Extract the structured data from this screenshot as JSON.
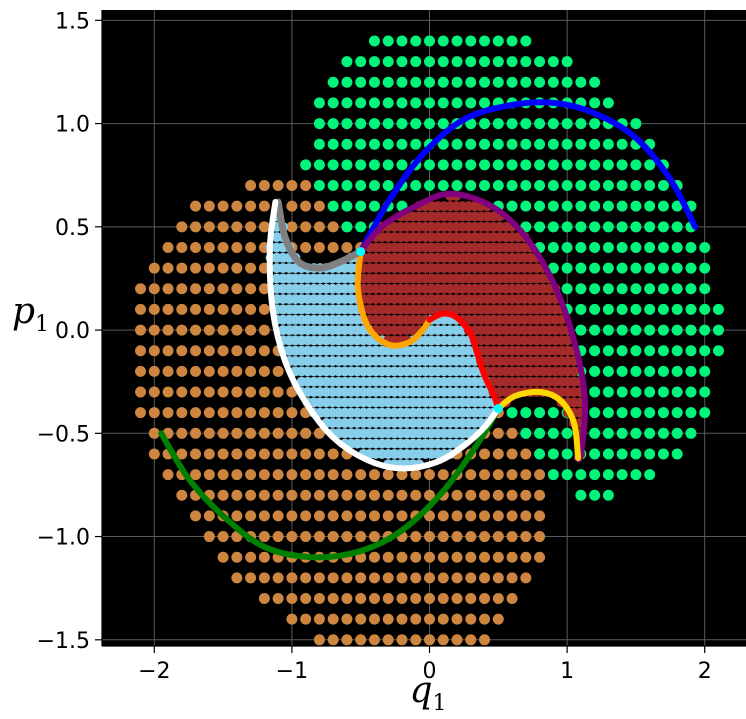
{
  "chart_data": {
    "type": "scatter",
    "title": "",
    "xlabel": "q",
    "xlabel_sub": "1",
    "ylabel": "p",
    "ylabel_sub": "1",
    "xlim": [
      -2.38,
      2.3
    ],
    "ylim": [
      -1.53,
      1.55
    ],
    "grid": true,
    "background": "#000000",
    "x_ticks": [
      -2,
      -1,
      0,
      1,
      2
    ],
    "x_tick_labels": [
      "−2",
      "−1",
      "0",
      "1",
      "2"
    ],
    "y_ticks": [
      -1.5,
      -1.0,
      -0.5,
      0.0,
      0.5,
      1.0,
      1.5
    ],
    "y_tick_labels": [
      "−1.5",
      "−1.0",
      "−0.5",
      "0.0",
      "0.5",
      "1.0",
      "1.5"
    ],
    "point_grid_step": {
      "x": 0.1,
      "y": 0.1
    },
    "regions": [
      {
        "name": "green-region",
        "color": "#00f57a",
        "radius": 5.5,
        "shape": "ellipse",
        "center": [
          0.6,
          0.35
        ],
        "radii": [
          1.6,
          1.05
        ],
        "tilt_deg": -25,
        "mask": "upper-right-of-boundary"
      },
      {
        "name": "orange-region",
        "color": "#cd853f",
        "radius": 5.5,
        "shape": "ellipse",
        "center": [
          -0.65,
          -0.45
        ],
        "radii": [
          1.6,
          1.05
        ],
        "tilt_deg": -25,
        "mask": "lower-left-of-boundary"
      },
      {
        "name": "lightblue-region",
        "color": "#87ceeb",
        "radius": 5,
        "shape": "polygon",
        "boundary": "white-lobe"
      },
      {
        "name": "brown-region",
        "color": "#a52a2a",
        "radius": 5,
        "shape": "polygon",
        "boundary": "red-lobe"
      }
    ],
    "curves": [
      {
        "name": "blue-curve",
        "color": "#0000ff",
        "width": 6,
        "points": [
          [
            -0.5,
            0.38
          ],
          [
            -0.3,
            0.62
          ],
          [
            -0.05,
            0.85
          ],
          [
            0.25,
            1.02
          ],
          [
            0.6,
            1.09
          ],
          [
            0.9,
            1.1
          ],
          [
            1.2,
            1.05
          ],
          [
            1.5,
            0.93
          ],
          [
            1.75,
            0.73
          ],
          [
            1.93,
            0.5
          ]
        ]
      },
      {
        "name": "green-curve",
        "color": "#008000",
        "width": 6,
        "points": [
          [
            0.5,
            -0.38
          ],
          [
            0.35,
            -0.55
          ],
          [
            0.1,
            -0.78
          ],
          [
            -0.2,
            -0.97
          ],
          [
            -0.5,
            -1.07
          ],
          [
            -0.85,
            -1.1
          ],
          [
            -1.2,
            -1.05
          ],
          [
            -1.5,
            -0.9
          ],
          [
            -1.75,
            -0.72
          ],
          [
            -1.95,
            -0.5
          ]
        ]
      },
      {
        "name": "purple-curve",
        "color": "#800080",
        "width": 6,
        "points": [
          [
            -0.5,
            0.38
          ],
          [
            -0.35,
            0.5
          ],
          [
            -0.1,
            0.6
          ],
          [
            0.15,
            0.66
          ],
          [
            0.45,
            0.6
          ],
          [
            0.7,
            0.45
          ],
          [
            0.92,
            0.2
          ],
          [
            1.07,
            -0.1
          ],
          [
            1.13,
            -0.35
          ],
          [
            1.1,
            -0.6
          ],
          [
            1.07,
            -0.62
          ]
        ]
      },
      {
        "name": "orange-curve",
        "color": "#ffa500",
        "width": 6,
        "points": [
          [
            -0.5,
            0.38
          ],
          [
            -0.52,
            0.2
          ],
          [
            -0.45,
            0.02
          ],
          [
            -0.3,
            -0.07
          ],
          [
            -0.15,
            -0.06
          ],
          [
            -0.05,
            0.0
          ],
          [
            0.0,
            0.05
          ]
        ]
      },
      {
        "name": "red-curve",
        "color": "#ff0000",
        "width": 6,
        "points": [
          [
            0.0,
            0.05
          ],
          [
            0.1,
            0.08
          ],
          [
            0.2,
            0.06
          ],
          [
            0.3,
            -0.02
          ],
          [
            0.35,
            -0.12
          ],
          [
            0.4,
            -0.22
          ],
          [
            0.47,
            -0.32
          ],
          [
            0.5,
            -0.38
          ]
        ]
      },
      {
        "name": "yellow-curve",
        "color": "#ffd700",
        "width": 6,
        "points": [
          [
            0.5,
            -0.38
          ],
          [
            0.62,
            -0.32
          ],
          [
            0.8,
            -0.3
          ],
          [
            0.95,
            -0.34
          ],
          [
            1.05,
            -0.45
          ],
          [
            1.08,
            -0.62
          ]
        ]
      },
      {
        "name": "gray-curve",
        "color": "#808080",
        "width": 7,
        "points": [
          [
            -1.1,
            0.62
          ],
          [
            -1.05,
            0.45
          ],
          [
            -0.95,
            0.33
          ],
          [
            -0.8,
            0.3
          ],
          [
            -0.65,
            0.33
          ],
          [
            -0.5,
            0.38
          ]
        ]
      },
      {
        "name": "white-curve",
        "color": "#ffffff",
        "width": 6,
        "points": [
          [
            -1.12,
            0.62
          ],
          [
            -1.16,
            0.4
          ],
          [
            -1.14,
            0.1
          ],
          [
            -1.05,
            -0.15
          ],
          [
            -0.9,
            -0.35
          ],
          [
            -0.7,
            -0.52
          ],
          [
            -0.45,
            -0.63
          ],
          [
            -0.2,
            -0.67
          ],
          [
            0.05,
            -0.64
          ],
          [
            0.25,
            -0.56
          ],
          [
            0.4,
            -0.47
          ],
          [
            0.5,
            -0.38
          ]
        ]
      }
    ],
    "markers": [
      {
        "name": "cyan-marker-upper",
        "color": "#00ffff",
        "x": -0.5,
        "y": 0.38
      },
      {
        "name": "cyan-marker-lower",
        "color": "#00ffff",
        "x": 0.5,
        "y": -0.38
      }
    ]
  }
}
